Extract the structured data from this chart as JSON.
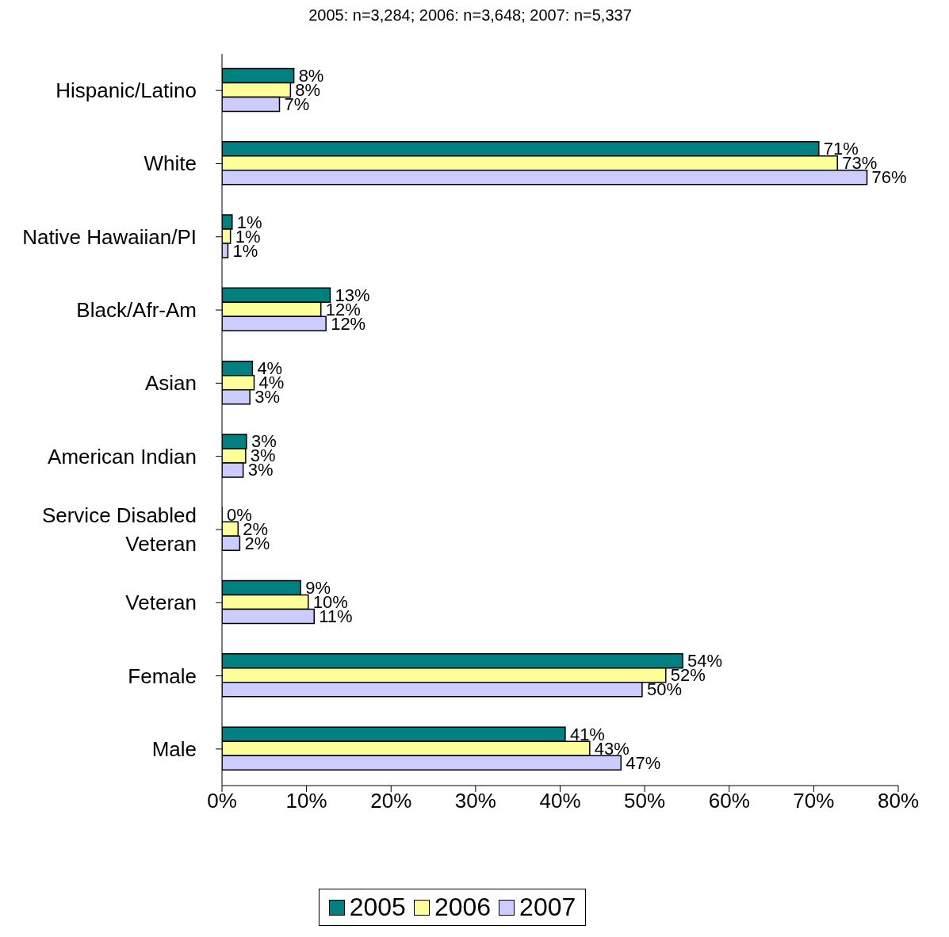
{
  "chart_data": {
    "type": "bar",
    "orientation": "horizontal",
    "title": "2005: n=3,284;  2006: n=3,648;  2007: n=5,337",
    "categories": [
      "Hispanic/Latino",
      "White",
      "Native Hawaiian/PI",
      "Black/Afr-Am",
      "Asian",
      "American Indian",
      "Service Disabled Veteran",
      "Veteran",
      "Female",
      "Male"
    ],
    "series": [
      {
        "name": "2005",
        "color": "#008080",
        "values": [
          8.5,
          70.6,
          1.2,
          12.8,
          3.6,
          2.9,
          0,
          9.3,
          54.5,
          40.6
        ],
        "value_labels": [
          "8%",
          "71%",
          "1%",
          "13%",
          "4%",
          "3%",
          "0%",
          "9%",
          "54%",
          "41%"
        ]
      },
      {
        "name": "2006",
        "color": "#ffff99",
        "values": [
          8.1,
          72.8,
          1.0,
          11.7,
          3.8,
          2.8,
          1.9,
          10.2,
          52.5,
          43.5
        ],
        "value_labels": [
          "8%",
          "73%",
          "1%",
          "12%",
          "4%",
          "3%",
          "2%",
          "10%",
          "52%",
          "43%"
        ]
      },
      {
        "name": "2007",
        "color": "#ccccff",
        "values": [
          6.8,
          76.3,
          0.7,
          12.3,
          3.3,
          2.5,
          2.1,
          10.9,
          49.7,
          47.2
        ],
        "value_labels": [
          "7%",
          "76%",
          "1%",
          "12%",
          "3%",
          "3%",
          "2%",
          "11%",
          "50%",
          "47%"
        ]
      }
    ],
    "xlim": [
      0,
      80
    ],
    "xticks": [
      {
        "value": 0,
        "label": "0%"
      },
      {
        "value": 10,
        "label": "10%"
      },
      {
        "value": 20,
        "label": "20%"
      },
      {
        "value": 30,
        "label": "30%"
      },
      {
        "value": 40,
        "label": "40%"
      },
      {
        "value": 50,
        "label": "50%"
      },
      {
        "value": 60,
        "label": "60%"
      },
      {
        "value": 70,
        "label": "70%"
      },
      {
        "value": 80,
        "label": "80%"
      }
    ],
    "grid": false,
    "legend": "bottom"
  }
}
